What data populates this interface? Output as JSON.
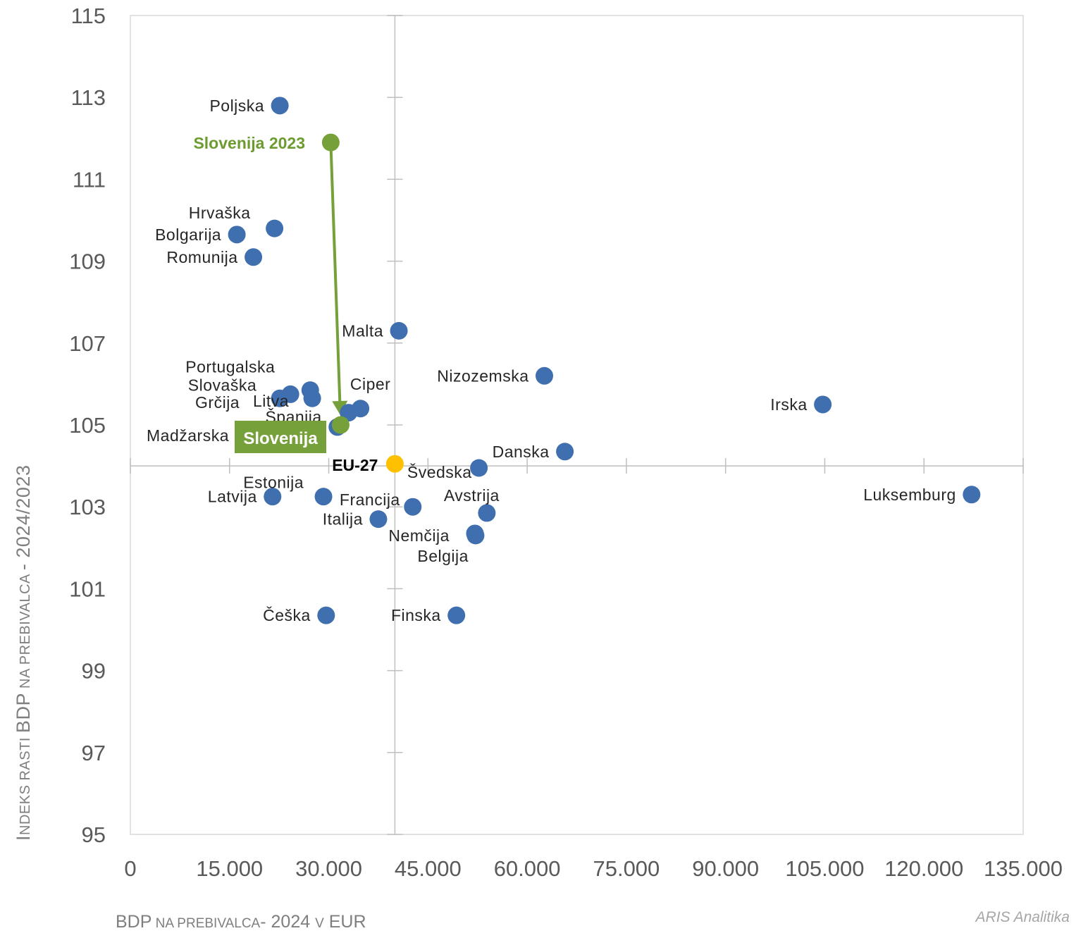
{
  "chart_data": {
    "type": "scatter",
    "title": "",
    "xlabel": {
      "main1": "BDP",
      "small1": " NA PREBIVALCA",
      "main2": "- 2024 ",
      "small2": "V",
      "main3": " EUR"
    },
    "ylabel": {
      "c1": "I",
      "s1": "NDEKS RASTI ",
      "c2": "BDP",
      "s2": " NA PREBIVALCA ",
      "c3": "- 2024/2023"
    },
    "xlim": [
      0,
      135000
    ],
    "ylim": [
      95,
      115
    ],
    "x_ticks": [
      0,
      15000,
      30000,
      45000,
      60000,
      75000,
      90000,
      105000,
      120000,
      135000
    ],
    "x_tick_labels": [
      "0",
      "15.000",
      "30.000",
      "45.000",
      "60.000",
      "75.000",
      "90.000",
      "105.000",
      "120.000",
      "135.000"
    ],
    "y_ticks": [
      95,
      97,
      99,
      101,
      103,
      105,
      107,
      109,
      111,
      113,
      115
    ],
    "y_tick_labels": [
      "95",
      "97",
      "99",
      "101",
      "103",
      "105",
      "107",
      "109",
      "111",
      "113",
      "115"
    ],
    "crosshair": {
      "x": 40000,
      "y": 104
    },
    "colors": {
      "country": "#3f6faf",
      "slovenia": "#76a03a",
      "eu": "#ffc000",
      "axis": "#bfbfbf"
    },
    "countries": [
      {
        "name": "Poljska",
        "x": 22600,
        "y": 112.8,
        "label_pos": "left"
      },
      {
        "name": "Hrvaška",
        "x": 21800,
        "y": 109.8,
        "label_pos": "above-left"
      },
      {
        "name": "Bolgarija",
        "x": 16100,
        "y": 109.65,
        "label_pos": "left"
      },
      {
        "name": "Romunija",
        "x": 18600,
        "y": 109.1,
        "label_pos": "left"
      },
      {
        "name": "Malta",
        "x": 40600,
        "y": 107.3,
        "label_pos": "left"
      },
      {
        "name": "Nizozemska",
        "x": 62600,
        "y": 106.2,
        "label_pos": "left"
      },
      {
        "name": "Irska",
        "x": 104700,
        "y": 105.5,
        "label_pos": "left"
      },
      {
        "name": "Portugalska",
        "x": 27200,
        "y": 105.85,
        "label_pos": "above-left"
      },
      {
        "name": "Slovaška",
        "x": 24200,
        "y": 105.75,
        "label_pos": "left"
      },
      {
        "name": "Grčija",
        "x": 22600,
        "y": 105.65,
        "label_pos": "below-left"
      },
      {
        "name": "Litva",
        "x": 27500,
        "y": 105.65,
        "label_pos": "left"
      },
      {
        "name": "Španija",
        "x": 33000,
        "y": 105.3,
        "label_pos": "left"
      },
      {
        "name": "Ciper",
        "x": 34800,
        "y": 105.4,
        "label_pos": "above"
      },
      {
        "name": "Madžarska",
        "x": 31300,
        "y": 104.95,
        "label_pos": "hidden"
      },
      {
        "name": "Danska",
        "x": 65700,
        "y": 104.35,
        "label_pos": "left"
      },
      {
        "name": "Švedska",
        "x": 52700,
        "y": 103.95,
        "label_pos": "left"
      },
      {
        "name": "Luksemburg",
        "x": 127200,
        "y": 103.3,
        "label_pos": "left"
      },
      {
        "name": "Estonija",
        "x": 29200,
        "y": 103.25,
        "label_pos": "above-left"
      },
      {
        "name": "Latvija",
        "x": 21500,
        "y": 103.25,
        "label_pos": "left"
      },
      {
        "name": "Francija",
        "x": 42700,
        "y": 103.0,
        "label_pos": "left"
      },
      {
        "name": "Avstrija",
        "x": 53900,
        "y": 102.85,
        "label_pos": "above-left"
      },
      {
        "name": "Italija",
        "x": 37500,
        "y": 102.7,
        "label_pos": "left"
      },
      {
        "name": "Nemčija",
        "x": 52100,
        "y": 102.35,
        "label_pos": "below-left"
      },
      {
        "name": "Belgija",
        "x": 52200,
        "y": 102.3,
        "label_pos": "below-left"
      },
      {
        "name": "Češka",
        "x": 29600,
        "y": 100.35,
        "label_pos": "left"
      },
      {
        "name": "Finska",
        "x": 49300,
        "y": 100.35,
        "label_pos": "left"
      }
    ],
    "static_labels": {
      "madzarska": "Madžarska"
    },
    "slovenia_2023": {
      "name": "Slovenija 2023",
      "x": 30300,
      "y": 111.9
    },
    "slovenia_2024": {
      "name": "Slovenija",
      "x": 31800,
      "y": 105.0
    },
    "eu27": {
      "name": "EU-27",
      "x": 40000,
      "y": 104.05
    }
  },
  "source": "ARIS Analitika"
}
